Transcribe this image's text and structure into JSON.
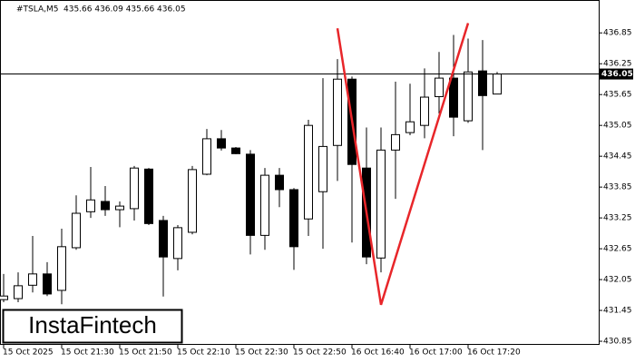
{
  "chart_data": {
    "type": "candlestick",
    "title": "#TSLA,M5",
    "ohlc_text": "435.66 436.09 435.66 436.05",
    "watermark": "InstaFintech",
    "categories": [
      "15 Oct 2025",
      null,
      null,
      null,
      "15 Oct 21:30",
      null,
      null,
      null,
      "15 Oct 21:50",
      null,
      null,
      null,
      "15 Oct 22:10",
      null,
      null,
      null,
      "15 Oct 22:30",
      null,
      null,
      null,
      "15 Oct 22:50",
      null,
      null,
      null,
      "16 Oct 16:40",
      null,
      null,
      null,
      "16 Oct 17:00",
      null,
      null,
      null,
      "16 Oct 17:20",
      null,
      null
    ],
    "open": [
      431.66,
      431.68,
      431.94,
      432.16,
      431.84,
      432.67,
      433.37,
      433.57,
      433.41,
      433.43,
      434.2,
      433.2,
      432.46,
      432.97,
      434.1,
      434.79,
      434.61,
      434.49,
      432.91,
      434.08,
      433.8,
      433.23,
      433.76,
      434.66,
      435.95,
      434.22,
      432.47,
      434.57,
      434.91,
      435.05,
      435.61,
      435.97,
      435.14,
      436.11,
      435.66
    ],
    "high": [
      432.16,
      432.19,
      432.9,
      432.39,
      433.04,
      433.69,
      434.24,
      433.87,
      433.57,
      434.26,
      434.22,
      433.29,
      433.11,
      434.26,
      434.98,
      434.96,
      434.63,
      434.57,
      434.22,
      434.22,
      433.83,
      435.16,
      435.97,
      436.34,
      436.0,
      435.01,
      435.01,
      435.9,
      435.86,
      436.16,
      436.48,
      436.81,
      436.74,
      436.71,
      436.09
    ],
    "low": [
      431.61,
      431.61,
      431.8,
      431.73,
      431.57,
      432.63,
      433.25,
      433.29,
      433.07,
      433.2,
      433.11,
      431.72,
      432.23,
      432.93,
      434.08,
      434.56,
      434.49,
      432.54,
      432.63,
      433.46,
      432.24,
      432.9,
      432.65,
      433.97,
      432.77,
      432.35,
      432.19,
      433.62,
      434.86,
      434.8,
      435.28,
      434.84,
      435.1,
      434.57,
      435.66
    ],
    "close": [
      431.73,
      431.93,
      432.16,
      431.77,
      432.69,
      433.34,
      433.6,
      433.41,
      433.48,
      434.22,
      433.14,
      432.49,
      433.06,
      434.19,
      434.79,
      434.61,
      434.5,
      432.91,
      434.08,
      433.8,
      432.69,
      435.05,
      434.64,
      435.95,
      434.29,
      432.49,
      434.57,
      434.87,
      435.12,
      435.6,
      435.97,
      435.21,
      436.09,
      435.63,
      436.05
    ],
    "up_color": "#ffffff",
    "down_color": "#000000",
    "ylim": [
      430.78,
      437.49
    ],
    "yticks": [
      436.85,
      436.25,
      435.65,
      435.05,
      434.45,
      433.85,
      433.25,
      432.65,
      432.05,
      431.45,
      430.85
    ],
    "last_price": 436.05,
    "pattern": {
      "color": "#e8262a",
      "x": [
        23,
        26,
        32
      ],
      "values": [
        436.94,
        431.56,
        437.04
      ]
    }
  }
}
